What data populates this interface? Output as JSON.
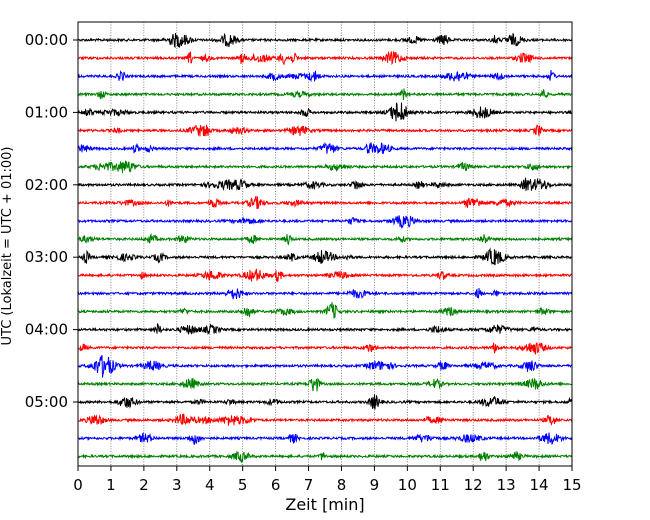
{
  "chart_data": {
    "type": "line",
    "title": "",
    "xlabel": "Zeit  [min]",
    "ylabel": "UTC (Lokalzeit = UTC + 01:00)",
    "xlim": [
      0,
      15
    ],
    "x_ticks": [
      0,
      1,
      2,
      3,
      4,
      5,
      6,
      7,
      8,
      9,
      10,
      11,
      12,
      13,
      14,
      15
    ],
    "x_tick_labels": [
      "0",
      "1",
      "2",
      "3",
      "4",
      "5",
      "6",
      "7",
      "8",
      "9",
      "10",
      "11",
      "12",
      "13",
      "14",
      "15"
    ],
    "y_tick_labels": [
      "00:00",
      "01:00",
      "02:00",
      "03:00",
      "04:00",
      "05:00"
    ],
    "y_tick_rows": [
      0,
      4,
      8,
      12,
      16,
      20
    ],
    "grid": "vertical dotted",
    "trace_count": 24,
    "trace_colors": [
      "#000000",
      "#ff0000",
      "#0000ff",
      "#008000"
    ],
    "traces_note_free": true
  }
}
